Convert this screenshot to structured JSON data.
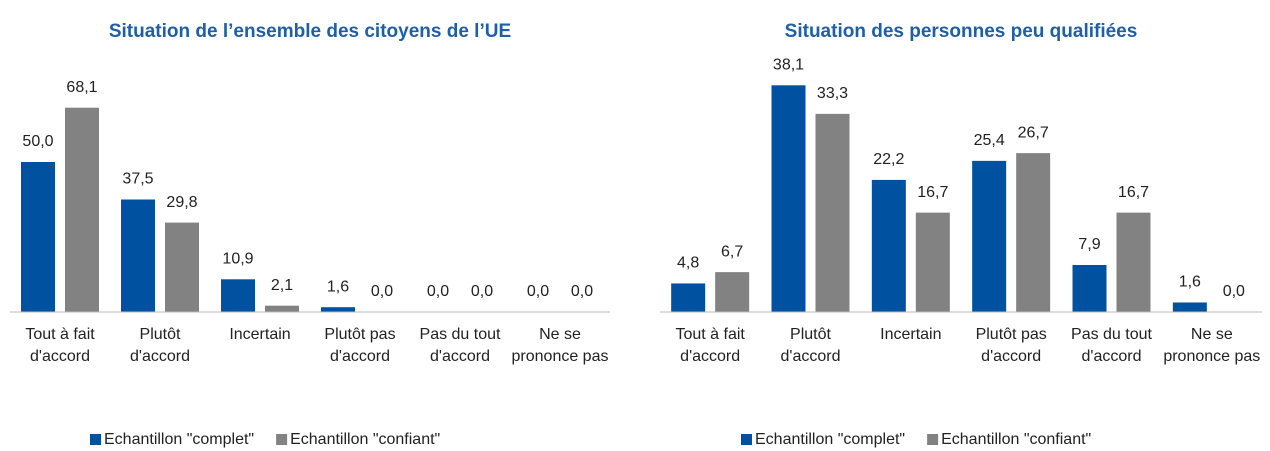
{
  "chart_data": [
    {
      "type": "bar",
      "title": "Situation de l’ensemble des citoyens de l’UE",
      "categories": [
        "Tout à fait d'accord",
        "Plutôt d'accord",
        "Incertain",
        "Plutôt pas d'accord",
        "Pas du tout d'accord",
        "Ne se prononce pas"
      ],
      "series": [
        {
          "name": "Echantillon \"complet\"",
          "color": "#0052a0",
          "values": [
            50.0,
            37.5,
            10.9,
            1.6,
            0.0,
            0.0
          ],
          "value_labels": [
            "50,0",
            "37,5",
            "10,9",
            "1,6",
            "0,0",
            "0,0"
          ]
        },
        {
          "name": "Echantillon \"confiant\"",
          "color": "#828282",
          "values": [
            68.1,
            29.8,
            2.1,
            0.0,
            0.0,
            0.0
          ],
          "value_labels": [
            "68,1",
            "29,8",
            "2,1",
            "0,0",
            "0,0",
            "0,0"
          ]
        }
      ],
      "ylim": [
        0,
        70
      ]
    },
    {
      "type": "bar",
      "title": "Situation des personnes peu qualifiées",
      "categories": [
        "Tout à fait d'accord",
        "Plutôt d'accord",
        "Incertain",
        "Plutôt pas d'accord",
        "Pas du tout d'accord",
        "Ne se prononce pas"
      ],
      "series": [
        {
          "name": "Echantillon \"complet\"",
          "color": "#0052a0",
          "values": [
            4.8,
            38.1,
            22.2,
            25.4,
            7.9,
            1.6
          ],
          "value_labels": [
            "4,8",
            "38,1",
            "22,2",
            "25,4",
            "7,9",
            "1,6"
          ]
        },
        {
          "name": "Echantillon \"confiant\"",
          "color": "#828282",
          "values": [
            6.7,
            33.3,
            16.7,
            26.7,
            16.7,
            0.0
          ],
          "value_labels": [
            "6,7",
            "33,3",
            "16,7",
            "26,7",
            "16,7",
            "0,0"
          ]
        }
      ],
      "ylim": [
        0,
        40
      ]
    }
  ]
}
